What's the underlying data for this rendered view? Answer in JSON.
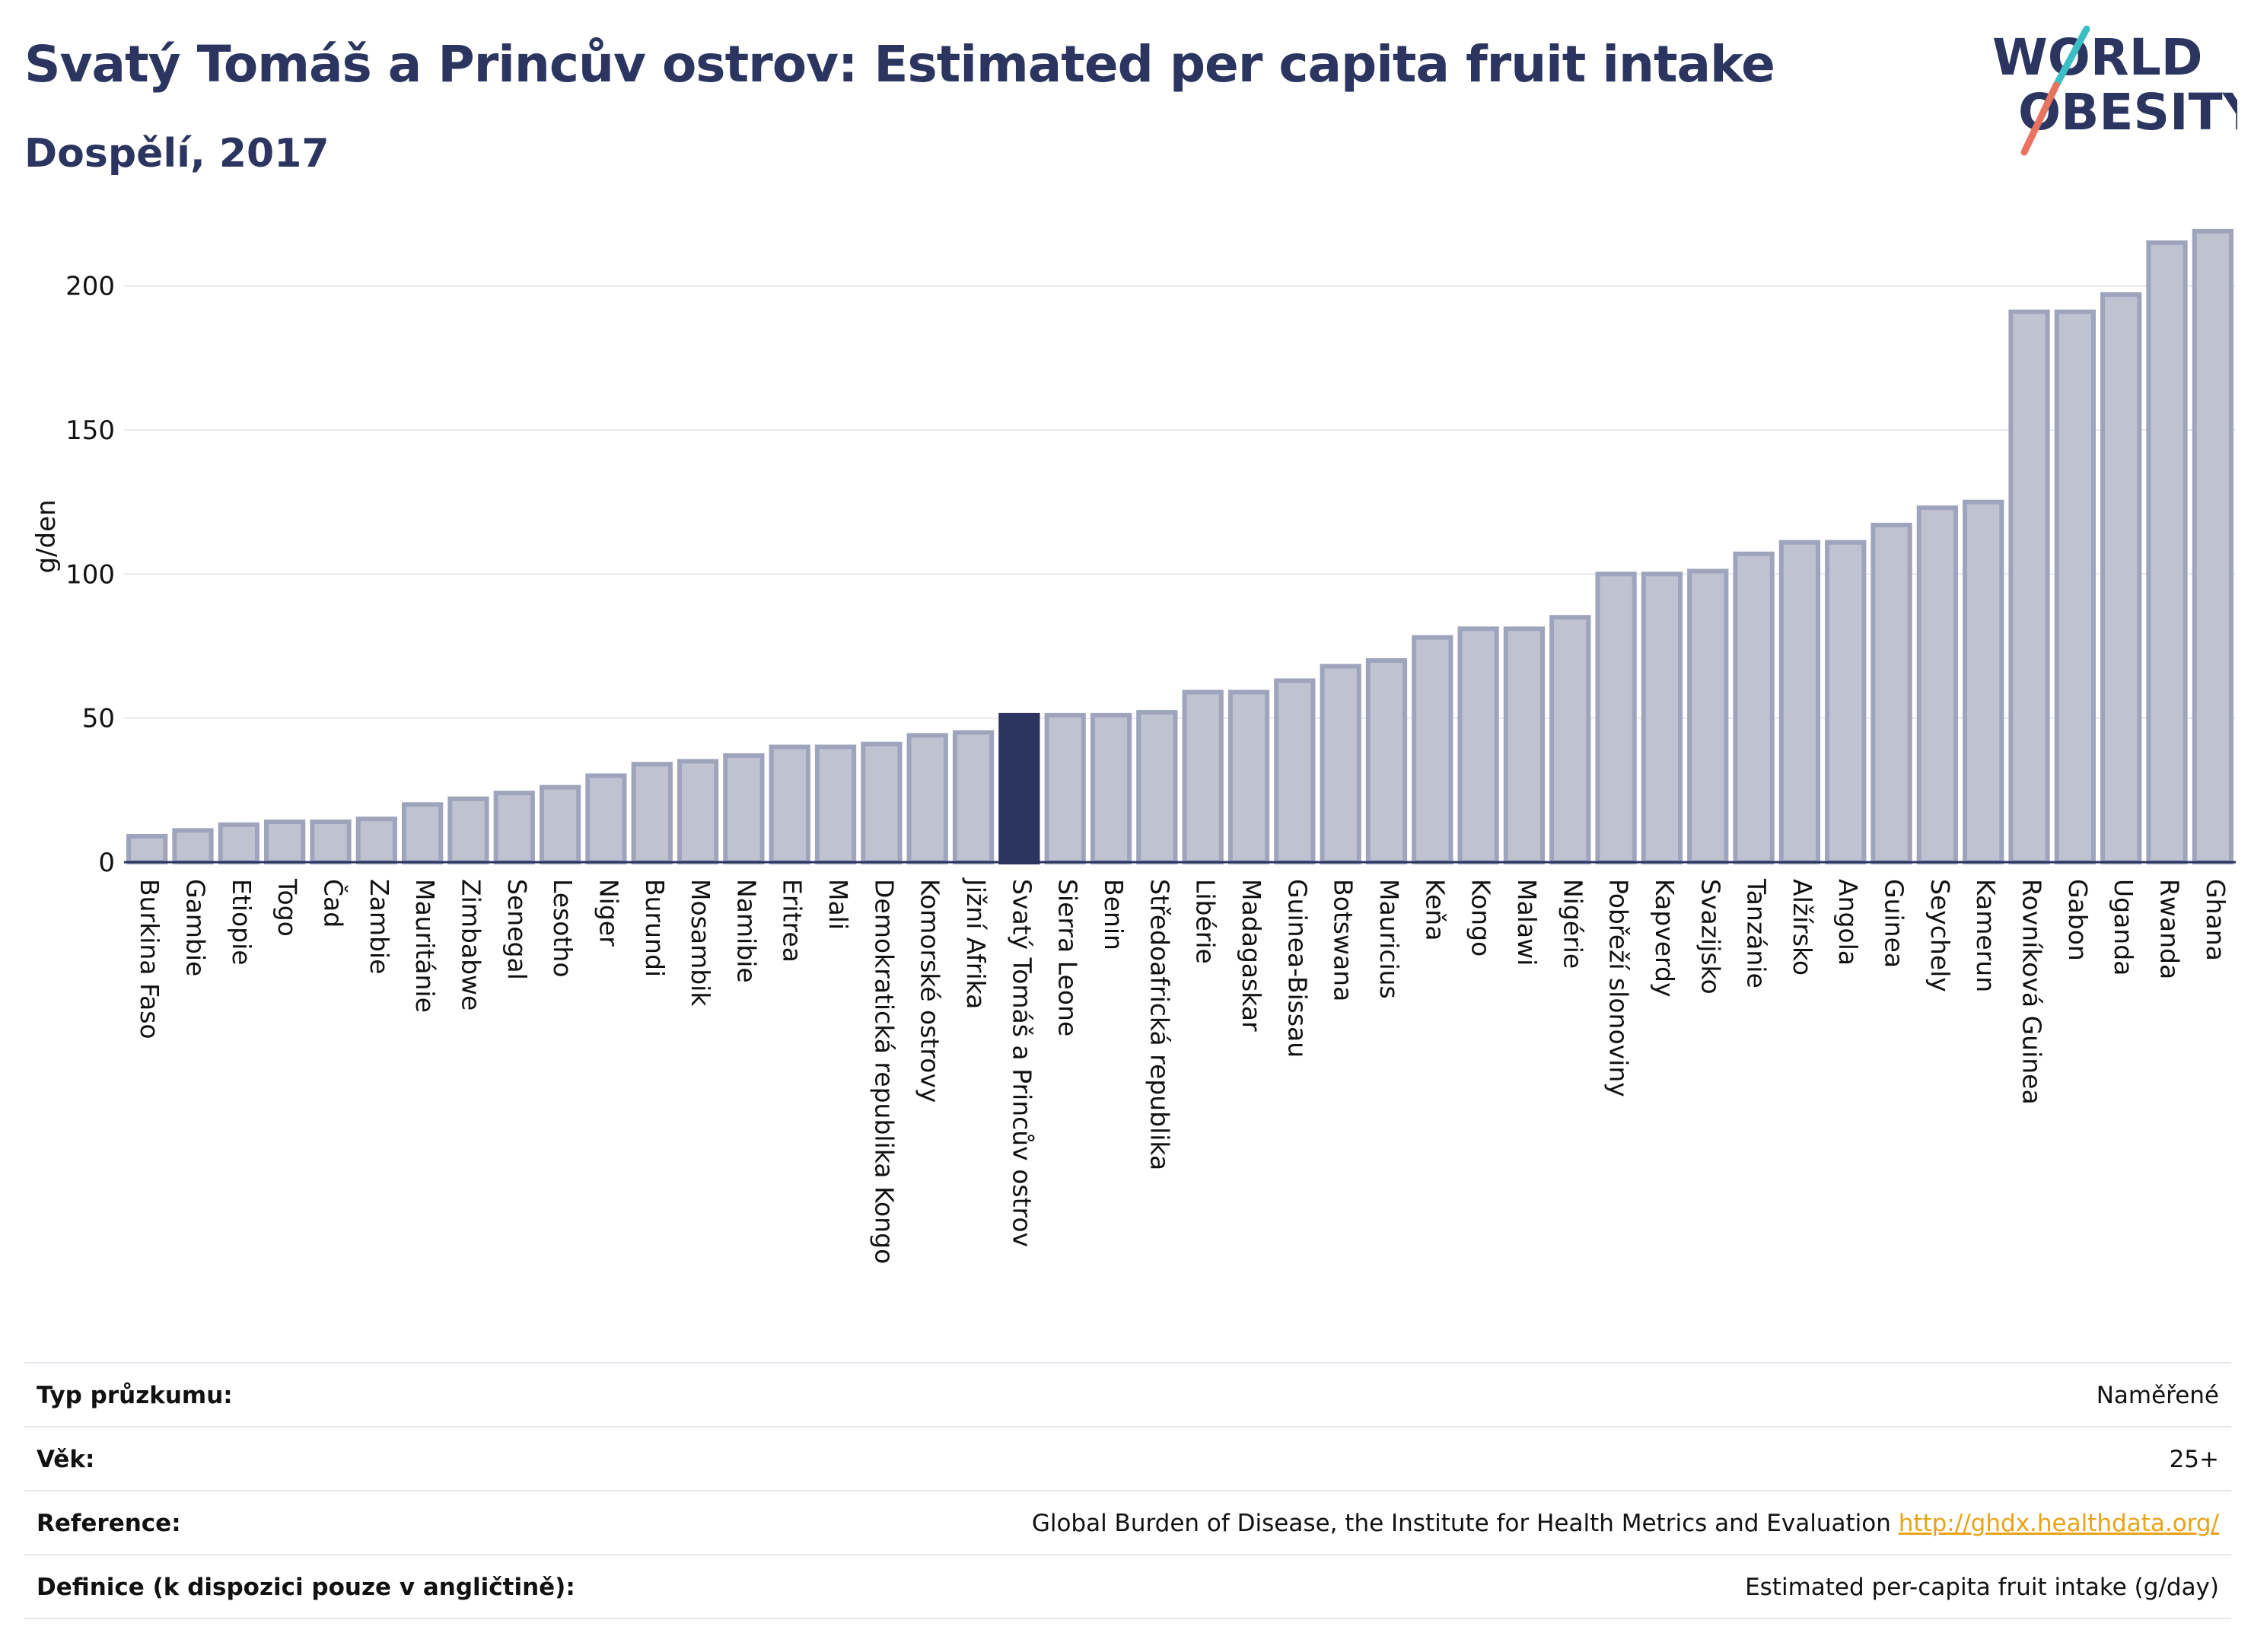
{
  "header": {
    "title": "Svatý Tomáš a Princův ostrov: Estimated per capita fruit intake",
    "subtitle": "Dospělí, 2017"
  },
  "logo": {
    "line1": "WORLD",
    "line2": "OBESITY",
    "colors": {
      "navy": "#2b3560",
      "teal": "#3bbfc4",
      "coral": "#e8735f"
    }
  },
  "chart_data": {
    "type": "bar",
    "title": "",
    "xlabel": "",
    "ylabel": "g/den",
    "ylim": [
      0,
      220
    ],
    "yticks": [
      0,
      50,
      100,
      150,
      200
    ],
    "grid": true,
    "highlight": "Svatý Tomáš a Princův ostrov",
    "colors": {
      "bar": "#bfc3d1",
      "bar_edge": "#9ea4bc",
      "highlight": "#2b3560",
      "grid": "#e6e8ef",
      "axis": "#2b3560"
    },
    "categories": [
      "Burkina Faso",
      "Gambie",
      "Etiopie",
      "Togo",
      "Čad",
      "Zambie",
      "Mauritánie",
      "Zimbabwe",
      "Senegal",
      "Lesotho",
      "Niger",
      "Burundi",
      "Mosambik",
      "Namibie",
      "Eritrea",
      "Mali",
      "Demokratická republika Kongo",
      "Komorské ostrovy",
      "Jižní Afrika",
      "Svatý Tomáš a Princův ostrov",
      "Sierra Leone",
      "Benin",
      "Středoafrická republika",
      "Libérie",
      "Madagaskar",
      "Guinea-Bissau",
      "Botswana",
      "Mauricius",
      "Keňa",
      "Kongo",
      "Malawi",
      "Nigérie",
      "Pobřeží slonoviny",
      "Kapverdy",
      "Svazijsko",
      "Tanzánie",
      "Alžírsko",
      "Angola",
      "Guinea",
      "Seychely",
      "Kamerun",
      "Rovníková Guinea",
      "Gabon",
      "Uganda",
      "Rwanda",
      "Ghana"
    ],
    "values": [
      9,
      11,
      13,
      14,
      14,
      15,
      20,
      22,
      24,
      26,
      30,
      34,
      35,
      37,
      40,
      40,
      41,
      44,
      45,
      51,
      51,
      51,
      52,
      59,
      59,
      63,
      68,
      70,
      78,
      81,
      81,
      85,
      100,
      100,
      101,
      107,
      111,
      111,
      117,
      123,
      125,
      191,
      191,
      197,
      215,
      219
    ]
  },
  "info": {
    "rows": [
      {
        "label": "Typ průzkumu:",
        "value": "Naměřené"
      },
      {
        "label": "Věk:",
        "value": "25+"
      },
      {
        "label": "Reference:",
        "value": "Global Burden of Disease, the Institute for Health Metrics and Evaluation ",
        "link": "http://ghdx.healthdata.org/"
      },
      {
        "label": "Definice (k dispozici pouze v angličtině):",
        "value": "Estimated per-capita fruit intake (g/day)"
      }
    ]
  }
}
